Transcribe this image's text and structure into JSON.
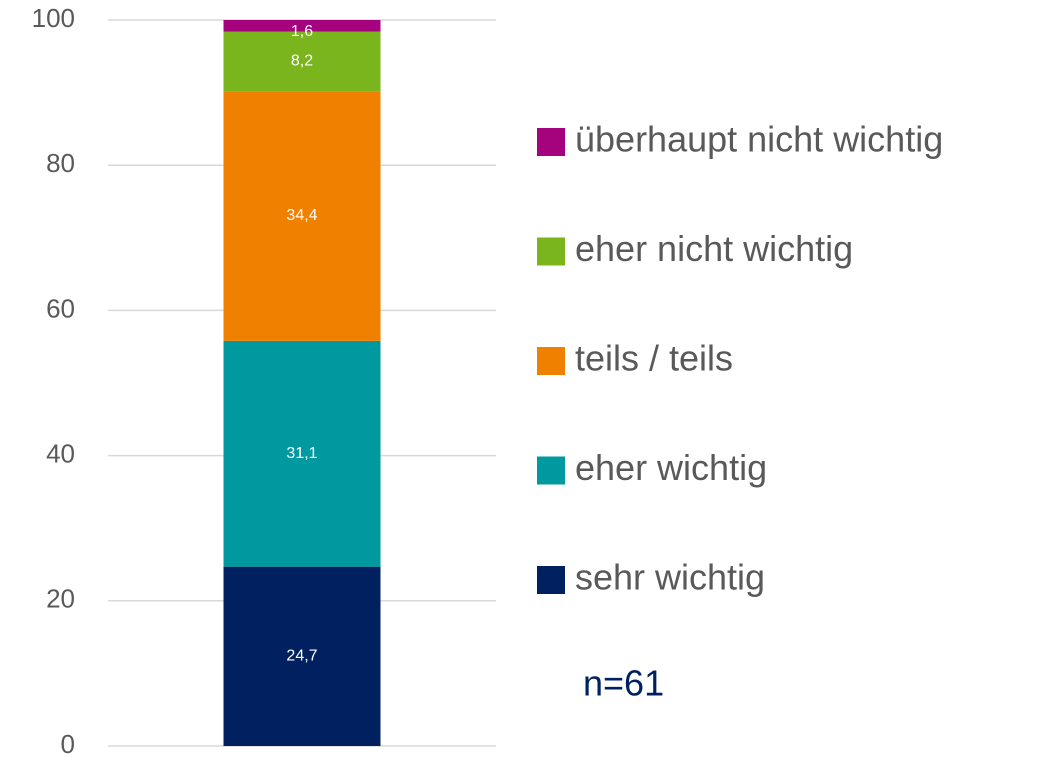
{
  "chart_data": {
    "type": "stacked_bar",
    "categories": [
      null
    ],
    "series": [
      {
        "name": "sehr wichtig",
        "color": "#002060",
        "values": [
          24.7
        ],
        "value_labels": [
          "24,7"
        ]
      },
      {
        "name": "eher wichtig",
        "color": "#00999f",
        "values": [
          31.1
        ],
        "value_labels": [
          "31,1"
        ]
      },
      {
        "name": "teils / teils",
        "color": "#f08000",
        "values": [
          34.4
        ],
        "value_labels": [
          "34,4"
        ]
      },
      {
        "name": "eher nicht wichtig",
        "color": "#7ab51d",
        "values": [
          8.2
        ],
        "value_labels": [
          "8,2"
        ]
      },
      {
        "name": "überhaupt nicht wichtig",
        "color": "#a5027d",
        "values": [
          1.6
        ],
        "value_labels": [
          "1,6"
        ]
      }
    ],
    "ylim": [
      0,
      100
    ],
    "yticks": [
      0,
      20,
      40,
      60,
      80,
      100
    ],
    "grid": true,
    "legend": "right",
    "annotation": "n=61"
  }
}
